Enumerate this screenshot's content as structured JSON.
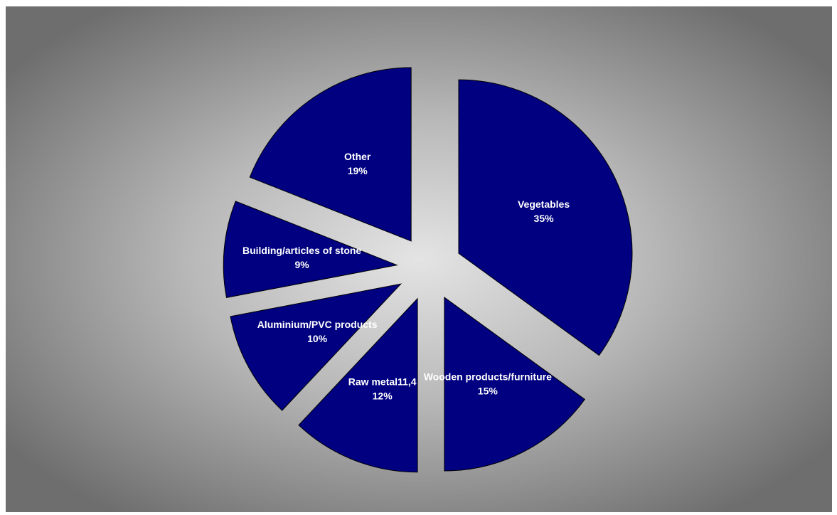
{
  "chart_data": {
    "type": "pie",
    "exploded": true,
    "title": "",
    "slice_color": "#000080",
    "slice_edge_color": "#000000",
    "background": "gradient gray",
    "slices": [
      {
        "label": "Vegetables",
        "value": 35,
        "value_label": "35%"
      },
      {
        "label": "Wooden products/furniture",
        "value": 15,
        "value_label": "15%"
      },
      {
        "label": "Raw metal11,4",
        "value": 12,
        "value_label": "12%"
      },
      {
        "label": "Aluminium/PVC products",
        "value": 10,
        "value_label": "10%"
      },
      {
        "label": "Building/articles of stone",
        "value": 9,
        "value_label": "9%"
      },
      {
        "label": "Other",
        "value": 19,
        "value_label": "19%"
      }
    ]
  }
}
